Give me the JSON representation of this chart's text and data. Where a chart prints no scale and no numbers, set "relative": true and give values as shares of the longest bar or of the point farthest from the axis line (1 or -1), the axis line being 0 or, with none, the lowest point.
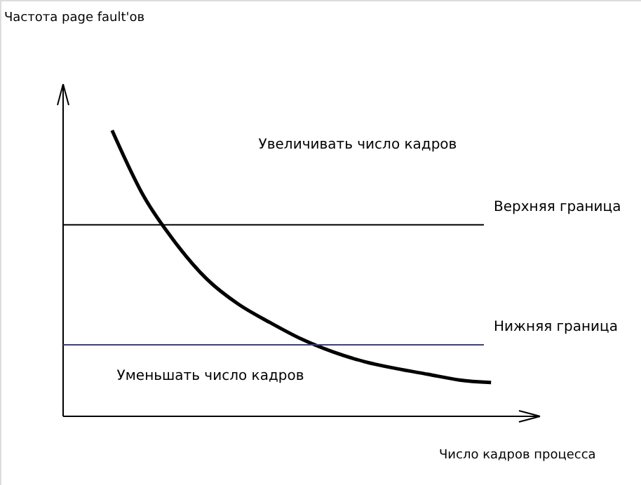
{
  "chart_data": {
    "type": "line",
    "relative": true,
    "xlabel": "Число кадров процесса",
    "categories": [
      null,
      null,
      null,
      null,
      null,
      null,
      null,
      null,
      null,
      null,
      null,
      null,
      null
    ],
    "series": [
      {
        "color": "#000000",
        "values": [
          1,
          0.77,
          0.608,
          0.48,
          0.392,
          0.328,
          0.27,
          0.225,
          0.191,
          0.167,
          0.147,
          0.127,
          0.118
        ]
      }
    ],
    "ref_lines": [
      {
        "axis": "y",
        "value": 0.67,
        "label": "Верхняя граница",
        "color": "#000000"
      },
      {
        "axis": "y",
        "value": 0.25,
        "label": "Нижняя граница",
        "color": "#40407a"
      }
    ],
    "annotations": [
      "Частота page fault'ов",
      "Увеличивать число кадров",
      "Уменьшать число кадров"
    ],
    "line_style": "solid"
  }
}
